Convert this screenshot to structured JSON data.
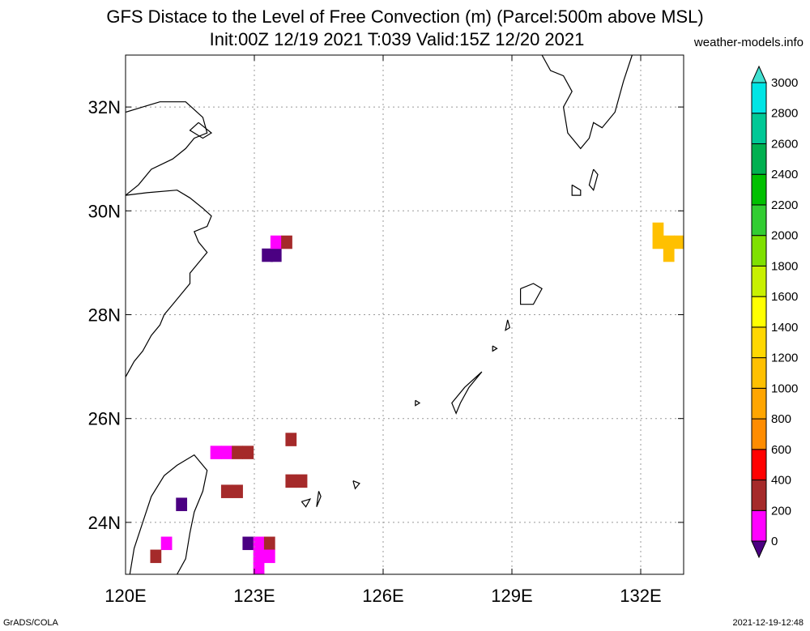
{
  "title": {
    "line1": "GFS Distace to the Level of Free Convection (m) (Parcel:500m above MSL)",
    "line2": "Init:00Z 12/19 2021 T:039 Valid:15Z 12/20 2021"
  },
  "credit": "weather-models.info",
  "footer": {
    "left": "GrADS/COLA",
    "right": "2021-12-19-12:48"
  },
  "map": {
    "lon_range": [
      120,
      133
    ],
    "lat_range": [
      23,
      33
    ],
    "lon_ticks": [
      {
        "value": 120,
        "label": "120E"
      },
      {
        "value": 123,
        "label": "123E"
      },
      {
        "value": 126,
        "label": "126E"
      },
      {
        "value": 129,
        "label": "129E"
      },
      {
        "value": 132,
        "label": "132E"
      }
    ],
    "lat_ticks": [
      {
        "value": 24,
        "label": "24N"
      },
      {
        "value": 26,
        "label": "26N"
      },
      {
        "value": 28,
        "label": "28N"
      },
      {
        "value": 30,
        "label": "30N"
      },
      {
        "value": 32,
        "label": "32N"
      }
    ],
    "gridlines": true
  },
  "colorbar": {
    "levels": [
      "0",
      "200",
      "400",
      "600",
      "800",
      "1000",
      "1200",
      "1400",
      "1600",
      "1800",
      "2000",
      "2200",
      "2400",
      "2600",
      "2800",
      "3000"
    ],
    "colors": [
      "#4b0082",
      "#ff00ff",
      "#a52a2a",
      "#ff0000",
      "#ff8c00",
      "#ffa500",
      "#ffc000",
      "#ffd700",
      "#ffff00",
      "#c8f000",
      "#7fe000",
      "#32cd32",
      "#00c000",
      "#00b050",
      "#00c896",
      "#00e5e5",
      "#40e0d0"
    ]
  },
  "cells": [
    {
      "lon": 123.3,
      "lat": 29.15,
      "color": "#4b0082"
    },
    {
      "lon": 123.5,
      "lat": 29.15,
      "color": "#4b0082"
    },
    {
      "lon": 123.5,
      "lat": 29.4,
      "color": "#ff00ff"
    },
    {
      "lon": 123.75,
      "lat": 29.4,
      "color": "#a52a2a"
    },
    {
      "lon": 132.4,
      "lat": 29.65,
      "color": "#ffc000"
    },
    {
      "lon": 132.4,
      "lat": 29.4,
      "color": "#ffc000"
    },
    {
      "lon": 132.65,
      "lat": 29.4,
      "color": "#ffc000"
    },
    {
      "lon": 132.9,
      "lat": 29.4,
      "color": "#ffc000"
    },
    {
      "lon": 132.65,
      "lat": 29.15,
      "color": "#ffc000"
    },
    {
      "lon": 123.85,
      "lat": 25.6,
      "color": "#a52a2a"
    },
    {
      "lon": 122.1,
      "lat": 25.35,
      "color": "#ff00ff"
    },
    {
      "lon": 122.35,
      "lat": 25.35,
      "color": "#ff00ff"
    },
    {
      "lon": 122.6,
      "lat": 25.35,
      "color": "#a52a2a"
    },
    {
      "lon": 122.85,
      "lat": 25.35,
      "color": "#a52a2a"
    },
    {
      "lon": 123.85,
      "lat": 24.8,
      "color": "#a52a2a"
    },
    {
      "lon": 124.1,
      "lat": 24.8,
      "color": "#a52a2a"
    },
    {
      "lon": 122.35,
      "lat": 24.6,
      "color": "#a52a2a"
    },
    {
      "lon": 122.6,
      "lat": 24.6,
      "color": "#a52a2a"
    },
    {
      "lon": 121.3,
      "lat": 24.35,
      "color": "#4b0082"
    },
    {
      "lon": 120.95,
      "lat": 23.6,
      "color": "#ff00ff"
    },
    {
      "lon": 120.7,
      "lat": 23.35,
      "color": "#a52a2a"
    },
    {
      "lon": 122.85,
      "lat": 23.6,
      "color": "#4b0082"
    },
    {
      "lon": 123.1,
      "lat": 23.6,
      "color": "#ff00ff"
    },
    {
      "lon": 123.35,
      "lat": 23.6,
      "color": "#a52a2a"
    },
    {
      "lon": 123.1,
      "lat": 23.35,
      "color": "#ff00ff"
    },
    {
      "lon": 123.35,
      "lat": 23.35,
      "color": "#ff00ff"
    },
    {
      "lon": 123.1,
      "lat": 23.1,
      "color": "#ff00ff"
    }
  ],
  "coastlines": [
    [
      [
        120,
        31.9
      ],
      [
        120.4,
        32.0
      ],
      [
        120.8,
        32.1
      ],
      [
        121.4,
        32.1
      ],
      [
        121.8,
        31.8
      ],
      [
        121.9,
        31.5
      ],
      [
        121.6,
        31.4
      ],
      [
        121.4,
        31.2
      ],
      [
        121.1,
        31.0
      ],
      [
        120.6,
        30.8
      ],
      [
        120.3,
        30.5
      ],
      [
        120.0,
        30.3
      ]
    ],
    [
      [
        120.0,
        30.3
      ],
      [
        120.5,
        30.35
      ],
      [
        121.2,
        30.4
      ],
      [
        121.5,
        30.25
      ],
      [
        121.8,
        30.05
      ],
      [
        122.0,
        29.9
      ],
      [
        121.9,
        29.7
      ],
      [
        121.6,
        29.6
      ],
      [
        121.7,
        29.4
      ],
      [
        121.9,
        29.2
      ],
      [
        121.7,
        29.0
      ],
      [
        121.5,
        28.8
      ],
      [
        121.5,
        28.6
      ],
      [
        121.3,
        28.4
      ],
      [
        121.1,
        28.2
      ],
      [
        120.9,
        28.0
      ],
      [
        120.8,
        27.8
      ],
      [
        120.6,
        27.6
      ],
      [
        120.4,
        27.3
      ],
      [
        120.2,
        27.1
      ],
      [
        120.0,
        26.8
      ]
    ],
    [
      [
        120.1,
        23.0
      ],
      [
        120.2,
        23.5
      ],
      [
        120.4,
        24.0
      ],
      [
        120.6,
        24.5
      ],
      [
        120.9,
        24.9
      ],
      [
        121.2,
        25.1
      ],
      [
        121.6,
        25.3
      ],
      [
        121.9,
        25.0
      ],
      [
        121.8,
        24.6
      ],
      [
        121.6,
        24.2
      ],
      [
        121.5,
        23.8
      ],
      [
        121.4,
        23.3
      ],
      [
        121.2,
        23.0
      ]
    ],
    [
      [
        121.7,
        31.7
      ],
      [
        122.0,
        31.5
      ],
      [
        121.8,
        31.4
      ],
      [
        121.5,
        31.55
      ],
      [
        121.7,
        31.7
      ]
    ],
    [
      [
        129.7,
        33.0
      ],
      [
        129.9,
        32.7
      ],
      [
        130.2,
        32.6
      ],
      [
        130.4,
        32.3
      ],
      [
        130.2,
        32.0
      ],
      [
        130.3,
        31.5
      ],
      [
        130.6,
        31.2
      ],
      [
        130.8,
        31.4
      ],
      [
        130.9,
        31.7
      ],
      [
        131.1,
        31.6
      ],
      [
        131.4,
        31.9
      ],
      [
        131.6,
        32.5
      ],
      [
        131.8,
        33.0
      ]
    ],
    [
      [
        130.4,
        30.5
      ],
      [
        130.6,
        30.4
      ],
      [
        130.6,
        30.3
      ],
      [
        130.4,
        30.3
      ],
      [
        130.4,
        30.5
      ]
    ],
    [
      [
        130.9,
        30.8
      ],
      [
        131.0,
        30.7
      ],
      [
        130.9,
        30.4
      ],
      [
        130.8,
        30.5
      ],
      [
        130.9,
        30.8
      ]
    ],
    [
      [
        129.2,
        28.5
      ],
      [
        129.5,
        28.6
      ],
      [
        129.7,
        28.5
      ],
      [
        129.5,
        28.2
      ],
      [
        129.2,
        28.2
      ],
      [
        129.2,
        28.5
      ]
    ],
    [
      [
        128.3,
        26.9
      ],
      [
        128.0,
        26.6
      ],
      [
        127.8,
        26.3
      ],
      [
        127.7,
        26.1
      ],
      [
        127.6,
        26.3
      ],
      [
        127.9,
        26.6
      ],
      [
        128.3,
        26.9
      ]
    ],
    [
      [
        128.9,
        27.9
      ],
      [
        128.95,
        27.75
      ],
      [
        128.85,
        27.7
      ],
      [
        128.9,
        27.9
      ]
    ],
    [
      [
        126.75,
        26.35
      ],
      [
        126.85,
        26.3
      ],
      [
        126.75,
        26.25
      ],
      [
        126.75,
        26.35
      ]
    ],
    [
      [
        125.3,
        24.8
      ],
      [
        125.45,
        24.75
      ],
      [
        125.35,
        24.65
      ],
      [
        125.3,
        24.8
      ]
    ],
    [
      [
        124.1,
        24.4
      ],
      [
        124.3,
        24.45
      ],
      [
        124.2,
        24.3
      ],
      [
        124.1,
        24.4
      ]
    ],
    [
      [
        124.5,
        24.6
      ],
      [
        124.55,
        24.5
      ],
      [
        124.45,
        24.3
      ],
      [
        124.5,
        24.6
      ]
    ],
    [
      [
        128.55,
        27.4
      ],
      [
        128.65,
        27.35
      ],
      [
        128.55,
        27.3
      ],
      [
        128.55,
        27.4
      ]
    ]
  ]
}
